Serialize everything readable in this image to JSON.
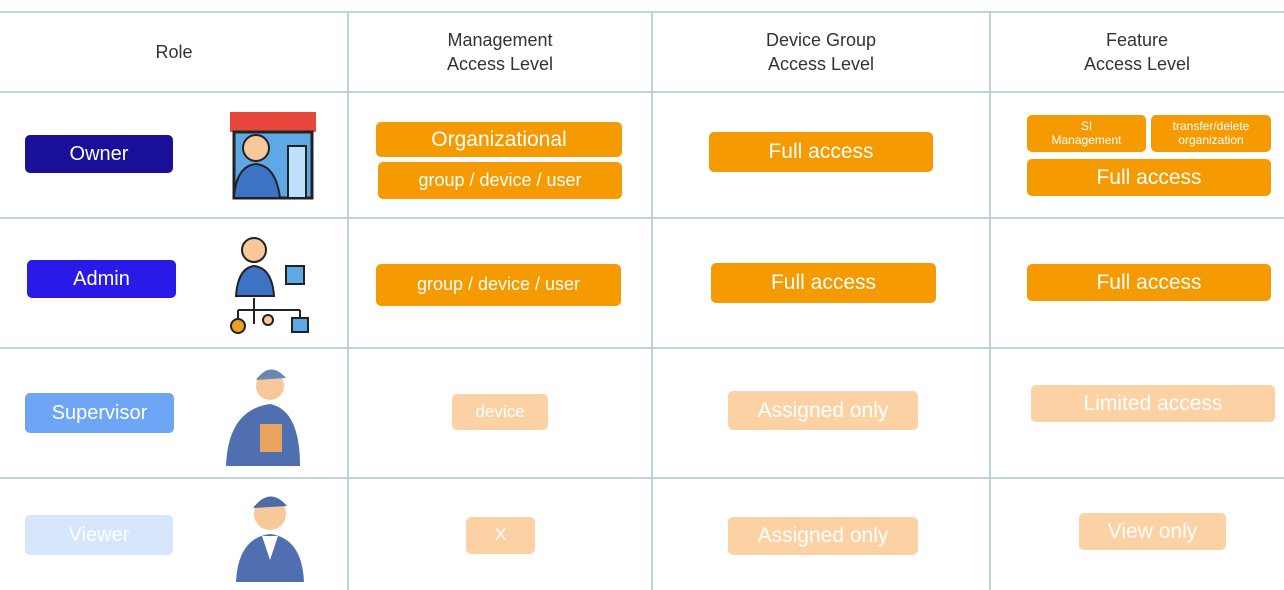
{
  "table": {
    "headers": [
      [
        "Role"
      ],
      [
        "Management",
        "Access Level"
      ],
      [
        "Device Group",
        "Access Level"
      ],
      [
        "Feature",
        "Access Level"
      ]
    ],
    "rows": [
      {
        "role": "Owner",
        "management": [
          "Organizational",
          "group / device / user"
        ],
        "device_group": [
          "Full access"
        ],
        "feature": {
          "small": [
            [
              "SI",
              "Management"
            ],
            [
              "transfer/delete",
              "organization"
            ]
          ],
          "main": "Full access"
        }
      },
      {
        "role": "Admin",
        "management": [
          "group / device / user"
        ],
        "device_group": [
          "Full access"
        ],
        "feature": {
          "main": "Full access"
        }
      },
      {
        "role": "Supervisor",
        "management": [
          "device"
        ],
        "device_group": [
          "Assigned only"
        ],
        "feature": {
          "main": "Limited access"
        }
      },
      {
        "role": "Viewer",
        "management": [
          "X"
        ],
        "device_group": [
          "Assigned only"
        ],
        "feature": {
          "main": "View only"
        }
      }
    ]
  }
}
